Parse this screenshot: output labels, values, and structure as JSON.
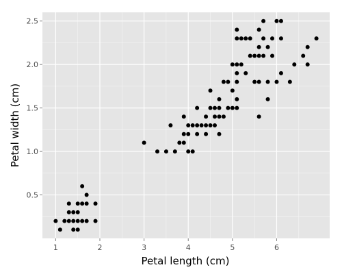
{
  "chart_data": {
    "type": "scatter",
    "title": "",
    "xlabel": "Petal length (cm)",
    "ylabel": "Petal width (cm)",
    "xlim": [
      0.7,
      7.2
    ],
    "ylim": [
      0.0,
      2.6
    ],
    "x_ticks": [
      1,
      2,
      3,
      4,
      5,
      6
    ],
    "x_tick_labels": [
      "1",
      "2",
      "3",
      "4",
      "5",
      "6"
    ],
    "y_ticks": [
      0.5,
      1.0,
      1.5,
      2.0,
      2.5
    ],
    "y_tick_labels": [
      "0.5",
      "1.0",
      "1.5",
      "2.0",
      "2.5"
    ],
    "grid": true,
    "legend": "none",
    "colors": {
      "panel": "#e5e5e5",
      "grid": "#ffffff",
      "point": "#000000"
    },
    "points": [
      [
        1.0,
        0.2
      ],
      [
        1.1,
        0.1
      ],
      [
        1.2,
        0.2
      ],
      [
        1.3,
        0.2
      ],
      [
        1.3,
        0.3
      ],
      [
        1.3,
        0.4
      ],
      [
        1.4,
        0.2
      ],
      [
        1.4,
        0.3
      ],
      [
        1.4,
        0.1
      ],
      [
        1.5,
        0.1
      ],
      [
        1.5,
        0.2
      ],
      [
        1.5,
        0.3
      ],
      [
        1.5,
        0.4
      ],
      [
        1.6,
        0.2
      ],
      [
        1.6,
        0.4
      ],
      [
        1.6,
        0.6
      ],
      [
        1.7,
        0.2
      ],
      [
        1.7,
        0.4
      ],
      [
        1.7,
        0.5
      ],
      [
        1.9,
        0.2
      ],
      [
        1.9,
        0.4
      ],
      [
        3.0,
        1.1
      ],
      [
        3.3,
        1.0
      ],
      [
        3.5,
        1.0
      ],
      [
        3.6,
        1.3
      ],
      [
        3.7,
        1.0
      ],
      [
        3.8,
        1.1
      ],
      [
        3.9,
        1.1
      ],
      [
        3.9,
        1.2
      ],
      [
        3.9,
        1.4
      ],
      [
        4.0,
        1.0
      ],
      [
        4.0,
        1.2
      ],
      [
        4.0,
        1.3
      ],
      [
        4.1,
        1.0
      ],
      [
        4.1,
        1.3
      ],
      [
        4.2,
        1.2
      ],
      [
        4.2,
        1.3
      ],
      [
        4.2,
        1.5
      ],
      [
        4.3,
        1.3
      ],
      [
        4.4,
        1.2
      ],
      [
        4.4,
        1.3
      ],
      [
        4.4,
        1.4
      ],
      [
        4.5,
        1.3
      ],
      [
        4.5,
        1.5
      ],
      [
        4.5,
        1.7
      ],
      [
        4.6,
        1.3
      ],
      [
        4.6,
        1.4
      ],
      [
        4.6,
        1.5
      ],
      [
        4.7,
        1.2
      ],
      [
        4.7,
        1.4
      ],
      [
        4.7,
        1.5
      ],
      [
        4.7,
        1.6
      ],
      [
        4.8,
        1.4
      ],
      [
        4.8,
        1.8
      ],
      [
        4.9,
        1.5
      ],
      [
        4.9,
        1.8
      ],
      [
        5.0,
        1.5
      ],
      [
        5.0,
        1.7
      ],
      [
        5.0,
        2.0
      ],
      [
        5.1,
        1.5
      ],
      [
        5.1,
        1.6
      ],
      [
        5.1,
        1.8
      ],
      [
        5.1,
        1.9
      ],
      [
        5.1,
        2.0
      ],
      [
        5.1,
        2.3
      ],
      [
        5.1,
        2.4
      ],
      [
        5.2,
        2.0
      ],
      [
        5.2,
        2.3
      ],
      [
        5.3,
        1.9
      ],
      [
        5.3,
        2.3
      ],
      [
        5.4,
        2.1
      ],
      [
        5.4,
        2.3
      ],
      [
        5.5,
        1.8
      ],
      [
        5.5,
        2.1
      ],
      [
        5.6,
        1.4
      ],
      [
        5.6,
        1.8
      ],
      [
        5.6,
        2.1
      ],
      [
        5.6,
        2.2
      ],
      [
        5.6,
        2.4
      ],
      [
        5.7,
        2.1
      ],
      [
        5.7,
        2.3
      ],
      [
        5.7,
        2.5
      ],
      [
        5.8,
        1.6
      ],
      [
        5.8,
        1.8
      ],
      [
        5.8,
        2.2
      ],
      [
        5.9,
        2.1
      ],
      [
        5.9,
        2.3
      ],
      [
        6.0,
        1.8
      ],
      [
        6.0,
        2.5
      ],
      [
        6.1,
        1.9
      ],
      [
        6.1,
        2.3
      ],
      [
        6.1,
        2.5
      ],
      [
        6.3,
        1.8
      ],
      [
        6.4,
        2.0
      ],
      [
        6.6,
        2.1
      ],
      [
        6.7,
        2.0
      ],
      [
        6.7,
        2.2
      ],
      [
        6.9,
        2.3
      ]
    ]
  }
}
